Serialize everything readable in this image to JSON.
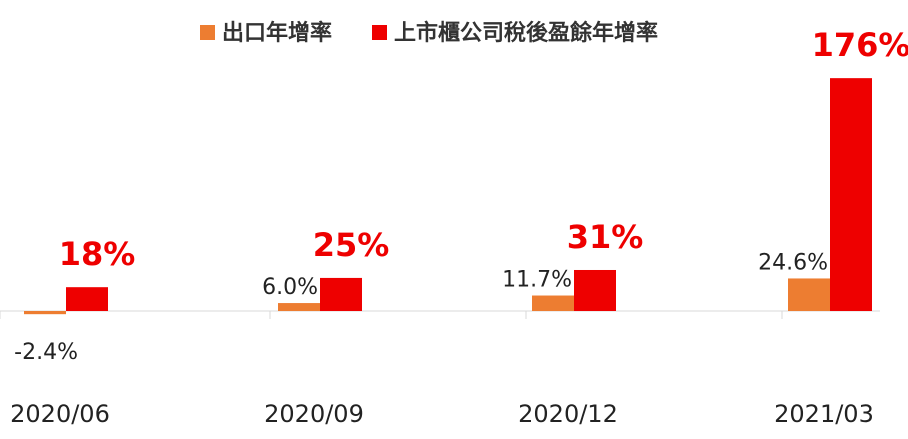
{
  "chart_data": {
    "type": "bar",
    "title": "",
    "xlabel": "",
    "ylabel": "",
    "categories": [
      "2020/06",
      "2020/09",
      "2020/12",
      "2021/03"
    ],
    "series": [
      {
        "name": "出口年增率",
        "color": "#ED7D31",
        "values": [
          -2.4,
          6.0,
          11.7,
          24.6
        ],
        "labels": [
          "-2.4%",
          "6.0%",
          "11.7%",
          "24.6%"
        ]
      },
      {
        "name": "上市櫃公司稅後盈餘年增率",
        "color": "#EE0000",
        "values": [
          18,
          25,
          31,
          176
        ],
        "labels": [
          "18%",
          "25%",
          "31%",
          "176%"
        ]
      }
    ],
    "legend": "top-center",
    "grid": false,
    "baseline": 0
  }
}
